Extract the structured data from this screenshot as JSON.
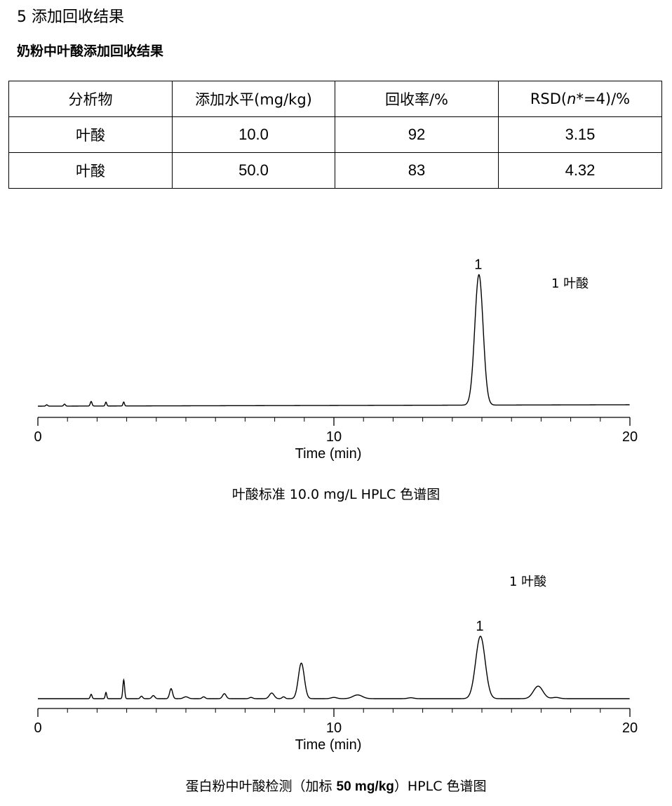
{
  "section": {
    "title": "5  添加回收结果"
  },
  "table": {
    "title": "奶粉中叶酸添加回收结果",
    "headers": [
      "分析物",
      "添加水平(mg/kg)",
      "回收率/%",
      "RSD(n*=4)/%"
    ],
    "rows": [
      [
        "叶酸",
        "10.0",
        "92",
        "3.15"
      ],
      [
        "叶酸",
        "50.0",
        "83",
        "4.32"
      ]
    ]
  },
  "chart_data": [
    {
      "type": "line",
      "xlabel": "Time (min)",
      "xlim": [
        0,
        20
      ],
      "x_ticks": [
        "0",
        "10",
        "20"
      ],
      "legend": "1 叶酸",
      "peaks": [
        {
          "label": "1",
          "time": 14.9,
          "height": 1.0,
          "width": 0.14
        }
      ],
      "minor_peaks": [
        {
          "time": 0.3,
          "height": 0.01,
          "width": 0.03
        },
        {
          "time": 0.9,
          "height": 0.015,
          "width": 0.03
        },
        {
          "time": 1.8,
          "height": 0.035,
          "width": 0.03
        },
        {
          "time": 2.3,
          "height": 0.03,
          "width": 0.025
        },
        {
          "time": 2.9,
          "height": 0.03,
          "width": 0.025
        }
      ],
      "caption": "叶酸标准 10.0 mg/L HPLC 色谱图"
    },
    {
      "type": "line",
      "xlabel": "Time (min)",
      "xlim": [
        0,
        20
      ],
      "x_ticks": [
        "0",
        "10",
        "20"
      ],
      "legend": "1 叶酸",
      "peaks": [
        {
          "label": "1",
          "time": 14.95,
          "height": 1.0,
          "width": 0.16
        },
        {
          "label": "",
          "time": 8.9,
          "height": 0.57,
          "width": 0.1
        },
        {
          "label": "",
          "time": 16.9,
          "height": 0.2,
          "width": 0.16
        }
      ],
      "minor_peaks": [
        {
          "time": 1.8,
          "height": 0.07,
          "width": 0.03
        },
        {
          "time": 2.3,
          "height": 0.1,
          "width": 0.025
        },
        {
          "time": 2.9,
          "height": 0.3,
          "width": 0.03
        },
        {
          "time": 3.5,
          "height": 0.04,
          "width": 0.04
        },
        {
          "time": 3.9,
          "height": 0.05,
          "width": 0.05
        },
        {
          "time": 4.5,
          "height": 0.16,
          "width": 0.05
        },
        {
          "time": 5.0,
          "height": 0.03,
          "width": 0.08
        },
        {
          "time": 5.6,
          "height": 0.03,
          "width": 0.05
        },
        {
          "time": 6.3,
          "height": 0.08,
          "width": 0.06
        },
        {
          "time": 7.2,
          "height": 0.02,
          "width": 0.06
        },
        {
          "time": 7.9,
          "height": 0.09,
          "width": 0.08
        },
        {
          "time": 8.3,
          "height": 0.03,
          "width": 0.05
        },
        {
          "time": 10.0,
          "height": 0.02,
          "width": 0.1
        },
        {
          "time": 10.8,
          "height": 0.06,
          "width": 0.16
        },
        {
          "time": 12.6,
          "height": 0.015,
          "width": 0.1
        },
        {
          "time": 17.5,
          "height": 0.02,
          "width": 0.12
        }
      ],
      "caption_pre": "蛋白粉中叶酸检测（加标 ",
      "caption_bold": "50 mg/kg",
      "caption_post": "）HPLC 色谱图"
    }
  ]
}
